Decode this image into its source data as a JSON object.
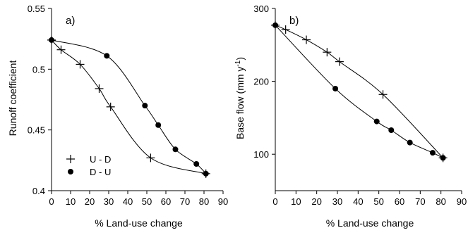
{
  "chart_data": [
    {
      "type": "line",
      "panel_label": "a)",
      "xlabel": "% Land-use change",
      "ylabel": "Runoff coefficient",
      "xlim": [
        0,
        90
      ],
      "ylim": [
        0.4,
        0.55
      ],
      "xticks": [
        "0",
        "10",
        "20",
        "30",
        "40",
        "50",
        "60",
        "70",
        "80",
        "90"
      ],
      "xtick_values": [
        0,
        10,
        20,
        30,
        40,
        50,
        60,
        70,
        80,
        90
      ],
      "yticks": [
        "0.4",
        "0.45",
        "0.5",
        "0.55"
      ],
      "ytick_values": [
        0.4,
        0.45,
        0.5,
        0.55
      ],
      "grid": false,
      "legend": {
        "placement": "bottom-left"
      },
      "series": [
        {
          "name": "U - D",
          "marker": "plus",
          "x": [
            0,
            5,
            15,
            25,
            31,
            52,
            81
          ],
          "y": [
            0.524,
            0.516,
            0.504,
            0.484,
            0.469,
            0.427,
            0.414
          ]
        },
        {
          "name": "D - U",
          "marker": "dot",
          "x": [
            0,
            29,
            49,
            56,
            65,
            76,
            81
          ],
          "y": [
            0.524,
            0.511,
            0.47,
            0.454,
            0.434,
            0.422,
            0.414
          ]
        }
      ]
    },
    {
      "type": "line",
      "panel_label": "b)",
      "xlabel": "% Land-use change",
      "ylabel": "Base flow (mm y",
      "ylabel_superscript": "-1",
      "ylabel_suffix": ")",
      "xlim": [
        0,
        90
      ],
      "ylim": [
        50,
        300
      ],
      "xticks": [
        "0",
        "10",
        "20",
        "30",
        "40",
        "50",
        "60",
        "70",
        "80",
        "90"
      ],
      "xtick_values": [
        0,
        10,
        20,
        30,
        40,
        50,
        60,
        70,
        80,
        90
      ],
      "yticks": [
        "100",
        "200",
        "300"
      ],
      "ytick_values": [
        100,
        200,
        300
      ],
      "grid": false,
      "series": [
        {
          "marker": "plus",
          "x": [
            0,
            5,
            15,
            25,
            31,
            52,
            81
          ],
          "y": [
            277,
            271,
            257,
            240,
            227,
            182,
            95
          ]
        },
        {
          "marker": "dot",
          "x": [
            0,
            29,
            49,
            56,
            65,
            76,
            81
          ],
          "y": [
            277,
            190,
            145,
            133,
            116,
            102,
            95
          ]
        }
      ]
    }
  ]
}
